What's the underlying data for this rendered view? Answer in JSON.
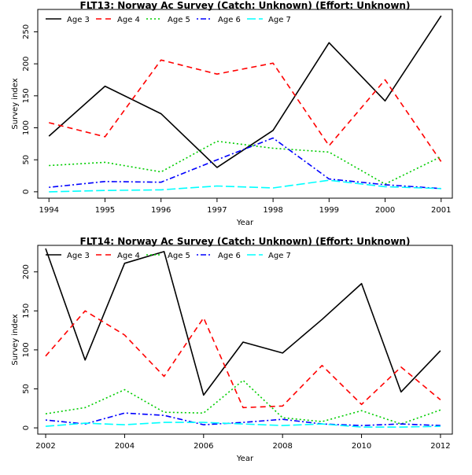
{
  "chart_data": [
    {
      "type": "line",
      "title": "FLT13: Norway Ac Survey (Catch: Unknown) (Effort: Unknown)",
      "xlabel": "Year",
      "ylabel": "Survey index",
      "x": [
        1994,
        1995,
        1996,
        1997,
        1998,
        1999,
        2000,
        2001
      ],
      "xticks": [
        1994,
        1995,
        1996,
        1997,
        1998,
        1999,
        2000,
        2001
      ],
      "yticks": [
        0,
        50,
        100,
        150,
        200,
        250
      ],
      "xlim": [
        1993.8,
        2001.2
      ],
      "ylim": [
        -10,
        285
      ],
      "grid": false,
      "legend": "top-left, horizontal",
      "series": [
        {
          "name": "Age 3",
          "color": "#000000",
          "dash": "solid",
          "values": [
            87,
            165,
            122,
            38,
            96,
            233,
            142,
            275
          ]
        },
        {
          "name": "Age 4",
          "color": "#ff0000",
          "dash": "dashed",
          "values": [
            108,
            86,
            206,
            184,
            201,
            72,
            175,
            47
          ]
        },
        {
          "name": "Age 5",
          "color": "#00cd00",
          "dash": "dotted",
          "values": [
            41,
            46,
            31,
            79,
            68,
            62,
            12,
            55
          ]
        },
        {
          "name": "Age 6",
          "color": "#0000ff",
          "dash": "dotdash",
          "values": [
            7,
            16,
            15,
            50,
            84,
            20,
            11,
            5
          ]
        },
        {
          "name": "Age 7",
          "color": "#00ffff",
          "dash": "longdash",
          "values": [
            0,
            2,
            3,
            9,
            6,
            18,
            8,
            5
          ]
        }
      ]
    },
    {
      "type": "line",
      "title": "FLT14: Norway Ac Survey (Catch: Unknown) (Effort: Unknown)",
      "xlabel": "Year",
      "ylabel": "Survey index",
      "x": [
        2002,
        2003,
        2004,
        2005,
        2006,
        2007,
        2008,
        2009,
        2010,
        2011,
        2012
      ],
      "xticks": [
        2002,
        2004,
        2006,
        2008,
        2010,
        2012
      ],
      "yticks": [
        0,
        50,
        100,
        150,
        200
      ],
      "xlim": [
        2001.8,
        2012.3
      ],
      "ylim": [
        -8,
        234
      ],
      "grid": false,
      "legend": "top-left, horizontal",
      "series": [
        {
          "name": "Age 3",
          "color": "#000000",
          "dash": "solid",
          "values": [
            230,
            87,
            211,
            226,
            42,
            110,
            96,
            139,
            185,
            46,
            99
          ]
        },
        {
          "name": "Age 4",
          "color": "#ff0000",
          "dash": "dashed",
          "values": [
            92,
            150,
            119,
            66,
            141,
            26,
            28,
            80,
            30,
            78,
            36
          ]
        },
        {
          "name": "Age 5",
          "color": "#00cd00",
          "dash": "dotted",
          "values": [
            18,
            26,
            49,
            20,
            19,
            61,
            13,
            8,
            22,
            5,
            23
          ]
        },
        {
          "name": "Age 6",
          "color": "#0000ff",
          "dash": "dotdash",
          "values": [
            10,
            5,
            19,
            16,
            4,
            7,
            11,
            5,
            3,
            5,
            3
          ]
        },
        {
          "name": "Age 7",
          "color": "#00ffff",
          "dash": "longdash",
          "values": [
            2,
            6,
            4,
            7,
            7,
            5,
            3,
            5,
            1,
            1,
            2
          ]
        }
      ]
    }
  ]
}
